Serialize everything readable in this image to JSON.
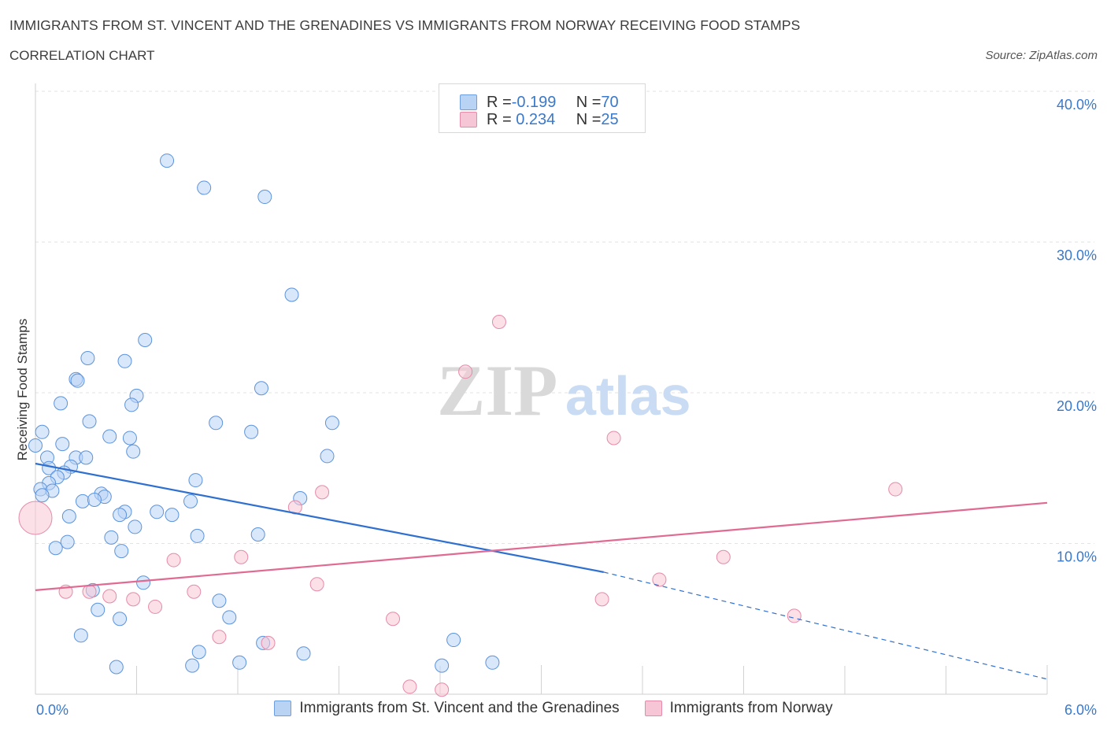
{
  "title": "IMMIGRANTS FROM ST. VINCENT AND THE GRENADINES VS IMMIGRANTS FROM NORWAY RECEIVING FOOD STAMPS",
  "subtitle": "CORRELATION CHART",
  "source": "Source: ZipAtlas.com",
  "watermark": {
    "zip": "ZIP",
    "atlas": "atlas"
  },
  "legend": {
    "rows": [
      {
        "r_label": "R = ",
        "r_value": "-0.199",
        "n_label": "N = ",
        "n_value": "70",
        "color": "#b9d3f5",
        "border": "#6d9fe0"
      },
      {
        "r_label": "R = ",
        "r_value": " 0.234",
        "n_label": "N = ",
        "n_value": "25",
        "color": "#f7c6d6",
        "border": "#e58aa8"
      }
    ]
  },
  "bottom_legend": [
    {
      "label": "Immigrants from St. Vincent and the Grenadines",
      "color": "#b9d3f5",
      "border": "#6d9fe0"
    },
    {
      "label": "Immigrants from Norway",
      "color": "#f7c6d6",
      "border": "#e58aa8"
    }
  ],
  "chart_data": {
    "type": "scatter",
    "ylabel": "Receiving Food Stamps",
    "xlim": [
      0,
      6
    ],
    "ylim": [
      0,
      40
    ],
    "x_tick_labels": [
      {
        "x": 0,
        "label": "0.0%"
      },
      {
        "x": 6,
        "label": "6.0%"
      }
    ],
    "y_tick_labels": [
      {
        "y": 10,
        "label": "10.0%"
      },
      {
        "y": 20,
        "label": "20.0%"
      },
      {
        "y": 30,
        "label": "30.0%"
      },
      {
        "y": 40,
        "label": "40.0%"
      }
    ],
    "colors": {
      "blue": "#5b93dc",
      "blue_fill": "rgba(185,211,245,0.55)",
      "blue_line": "#2f6fcf",
      "pink": "#e58aa8",
      "pink_fill": "rgba(247,198,214,0.55)",
      "pink_line": "#e06a92"
    },
    "series": [
      {
        "name": "Immigrants from St. Vincent and the Grenadines",
        "points": [
          [
            0.78,
            35.4
          ],
          [
            1.0,
            33.6
          ],
          [
            1.36,
            33.0
          ],
          [
            1.52,
            26.5
          ],
          [
            0.65,
            23.5
          ],
          [
            0.31,
            22.3
          ],
          [
            0.53,
            22.1
          ],
          [
            0.24,
            20.9
          ],
          [
            0.25,
            20.8
          ],
          [
            0.6,
            19.8
          ],
          [
            0.57,
            19.2
          ],
          [
            1.34,
            20.3
          ],
          [
            0.15,
            19.3
          ],
          [
            0.32,
            18.1
          ],
          [
            1.07,
            18.0
          ],
          [
            1.28,
            17.4
          ],
          [
            1.76,
            18.0
          ],
          [
            0.04,
            17.4
          ],
          [
            0.44,
            17.1
          ],
          [
            0.56,
            17.0
          ],
          [
            0.0,
            16.5
          ],
          [
            0.16,
            16.6
          ],
          [
            0.58,
            16.1
          ],
          [
            0.07,
            15.7
          ],
          [
            0.24,
            15.7
          ],
          [
            0.3,
            15.7
          ],
          [
            1.73,
            15.8
          ],
          [
            0.08,
            15.0
          ],
          [
            0.21,
            15.1
          ],
          [
            0.17,
            14.7
          ],
          [
            0.13,
            14.4
          ],
          [
            0.08,
            14.0
          ],
          [
            0.95,
            14.2
          ],
          [
            0.03,
            13.6
          ],
          [
            0.1,
            13.5
          ],
          [
            0.04,
            13.2
          ],
          [
            0.39,
            13.3
          ],
          [
            0.41,
            13.1
          ],
          [
            0.28,
            12.8
          ],
          [
            0.35,
            12.9
          ],
          [
            0.92,
            12.8
          ],
          [
            1.57,
            13.0
          ],
          [
            0.53,
            12.1
          ],
          [
            0.72,
            12.1
          ],
          [
            0.5,
            11.9
          ],
          [
            0.81,
            11.9
          ],
          [
            0.2,
            11.8
          ],
          [
            0.59,
            11.1
          ],
          [
            1.32,
            10.6
          ],
          [
            0.96,
            10.5
          ],
          [
            0.45,
            10.4
          ],
          [
            0.19,
            10.1
          ],
          [
            0.12,
            9.7
          ],
          [
            0.51,
            9.5
          ],
          [
            0.64,
            7.4
          ],
          [
            0.34,
            6.9
          ],
          [
            1.09,
            6.2
          ],
          [
            0.37,
            5.6
          ],
          [
            1.15,
            5.1
          ],
          [
            0.5,
            5.0
          ],
          [
            0.27,
            3.9
          ],
          [
            2.48,
            3.6
          ],
          [
            1.35,
            3.4
          ],
          [
            0.97,
            2.8
          ],
          [
            1.59,
            2.7
          ],
          [
            2.71,
            2.1
          ],
          [
            1.21,
            2.1
          ],
          [
            0.93,
            1.9
          ],
          [
            0.48,
            1.8
          ],
          [
            2.41,
            1.9
          ]
        ]
      },
      {
        "name": "Immigrants from Norway",
        "points": [
          [
            2.75,
            24.7
          ],
          [
            2.55,
            21.4
          ],
          [
            3.43,
            17.0
          ],
          [
            5.1,
            13.6
          ],
          [
            1.7,
            13.4
          ],
          [
            1.54,
            12.4
          ],
          [
            0.0,
            11.7
          ],
          [
            4.08,
            9.1
          ],
          [
            0.82,
            8.9
          ],
          [
            1.22,
            9.1
          ],
          [
            3.7,
            7.6
          ],
          [
            1.67,
            7.3
          ],
          [
            0.18,
            6.8
          ],
          [
            0.32,
            6.8
          ],
          [
            0.94,
            6.8
          ],
          [
            0.44,
            6.5
          ],
          [
            0.58,
            6.3
          ],
          [
            3.36,
            6.3
          ],
          [
            0.71,
            5.8
          ],
          [
            2.12,
            5.0
          ],
          [
            4.5,
            5.2
          ],
          [
            1.09,
            3.8
          ],
          [
            1.38,
            3.4
          ],
          [
            2.22,
            0.5
          ],
          [
            2.41,
            0.3
          ]
        ],
        "sizes": {
          "6": "large"
        }
      }
    ],
    "trend_lines": [
      {
        "series": "blue",
        "solid": [
          [
            0.0,
            15.3
          ],
          [
            3.37,
            8.1
          ]
        ],
        "dashed": [
          [
            3.37,
            8.1
          ],
          [
            6.0,
            1.0
          ]
        ]
      },
      {
        "series": "pink",
        "solid": [
          [
            0.0,
            6.9
          ],
          [
            6.0,
            12.7
          ]
        ]
      }
    ]
  }
}
